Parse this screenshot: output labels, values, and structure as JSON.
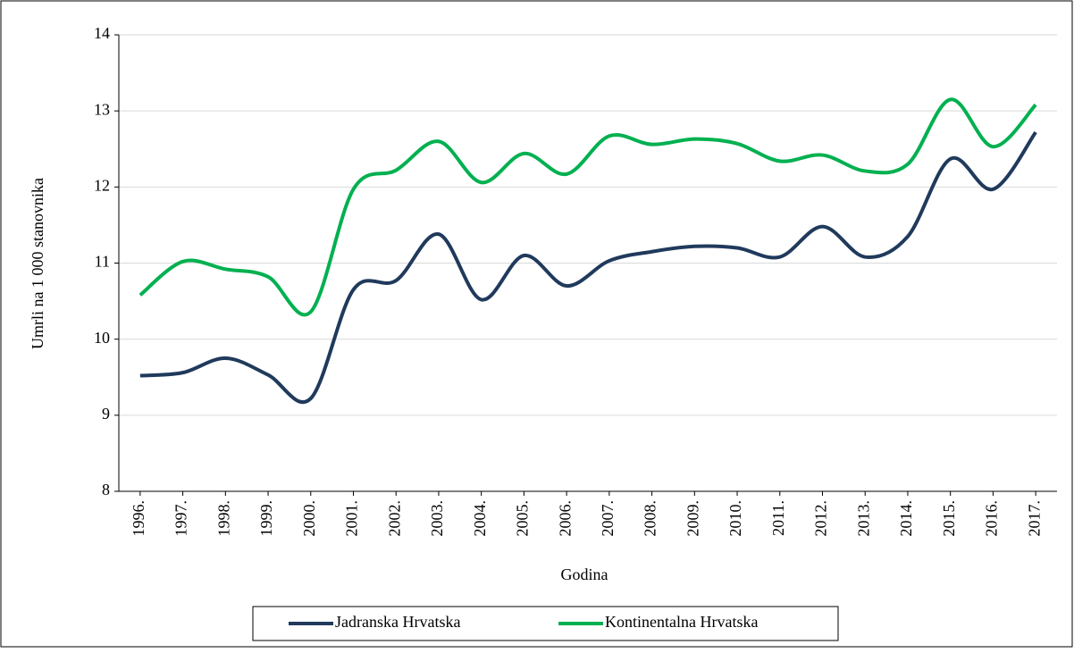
{
  "chart_data": {
    "type": "line",
    "x_label": "Godina",
    "y_label": "Umrli na 1 000 stanovnika",
    "categories": [
      "1996.",
      "1997.",
      "1998.",
      "1999.",
      "2000.",
      "2001.",
      "2002.",
      "2003.",
      "2004.",
      "2005.",
      "2006.",
      "2007.",
      "2008.",
      "2009.",
      "2010.",
      "2011.",
      "2012.",
      "2013.",
      "2014.",
      "2015.",
      "2016.",
      "2017."
    ],
    "series": [
      {
        "name": "Jadranska Hrvatska",
        "color": "#203a5c",
        "values": [
          9.52,
          9.56,
          9.75,
          9.53,
          9.22,
          10.65,
          10.77,
          11.38,
          10.52,
          11.1,
          10.7,
          11.03,
          11.15,
          11.22,
          11.2,
          11.08,
          11.48,
          11.08,
          11.35,
          12.37,
          11.97,
          12.72
        ]
      },
      {
        "name": "Kontinentalna Hrvatska",
        "color": "#00b050",
        "values": [
          10.58,
          11.02,
          10.92,
          10.82,
          10.36,
          11.97,
          12.22,
          12.6,
          12.06,
          12.44,
          12.17,
          12.67,
          12.56,
          12.63,
          12.57,
          12.34,
          12.42,
          12.21,
          12.3,
          13.15,
          12.53,
          13.08
        ]
      }
    ],
    "ylim": [
      8,
      14
    ],
    "yticks": [
      8,
      9,
      10,
      11,
      12,
      13,
      14
    ],
    "grid": true,
    "smooth": true,
    "legend": "bottom"
  }
}
